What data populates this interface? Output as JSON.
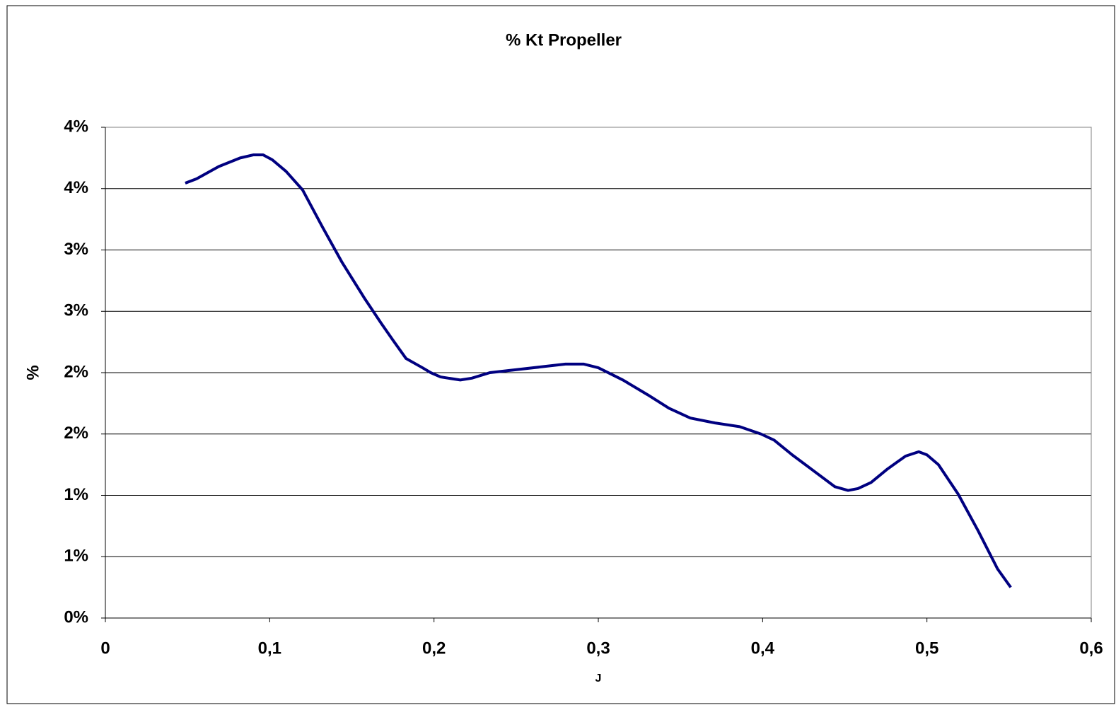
{
  "chart_data": {
    "type": "line",
    "title": "% Kt Propeller",
    "x_label": "J",
    "y_label": "%",
    "x": [
      0.0486,
      0.0555,
      0.069,
      0.082,
      0.09,
      0.096,
      0.1016,
      0.11,
      0.12,
      0.132,
      0.144,
      0.158,
      0.168,
      0.175,
      0.183,
      0.193,
      0.198,
      0.204,
      0.216,
      0.223,
      0.234,
      0.254,
      0.28,
      0.291,
      0.3,
      0.315,
      0.33,
      0.343,
      0.356,
      0.371,
      0.386,
      0.399,
      0.407,
      0.418,
      0.429,
      0.444,
      0.452,
      0.458,
      0.466,
      0.476,
      0.487,
      0.495,
      0.5,
      0.507,
      0.519,
      0.531,
      0.543,
      0.551
    ],
    "series": [
      {
        "color": "#000080",
        "values": [
          3.545,
          3.58,
          3.68,
          3.75,
          3.775,
          3.775,
          3.735,
          3.64,
          3.49,
          3.19,
          2.9,
          2.6,
          2.4,
          2.265,
          2.115,
          2.04,
          2.0,
          1.965,
          1.94,
          1.955,
          2.0,
          2.03,
          2.07,
          2.07,
          2.04,
          1.94,
          1.82,
          1.71,
          1.63,
          1.59,
          1.56,
          1.5,
          1.45,
          1.33,
          1.22,
          1.07,
          1.04,
          1.055,
          1.105,
          1.215,
          1.32,
          1.355,
          1.33,
          1.25,
          1.01,
          0.715,
          0.4,
          0.25
        ]
      }
    ],
    "xlim": [
      0,
      0.6
    ],
    "xticks": [
      0,
      {
        "value": 0.1,
        "label": "0,1"
      },
      {
        "value": 0.2,
        "label": "0,2"
      },
      {
        "value": 0.3,
        "label": "0,3"
      },
      {
        "value": 0.4,
        "label": "0,4"
      },
      {
        "value": 0.5,
        "label": "0,5"
      },
      {
        "value": 0.6,
        "label": "0,6"
      }
    ],
    "ylim": [
      0,
      4
    ],
    "yticks": [
      {
        "value": 0,
        "label": "0%"
      },
      {
        "value": 0.5,
        "label": "1%"
      },
      {
        "value": 1,
        "label": "1%"
      },
      {
        "value": 1.5,
        "label": "2%"
      },
      {
        "value": 2,
        "label": "2%"
      },
      {
        "value": 2.5,
        "label": "3%"
      },
      {
        "value": 3,
        "label": "3%"
      },
      {
        "value": 3.5,
        "label": "4%"
      },
      {
        "value": 4,
        "label": "4%"
      }
    ],
    "grid": true
  }
}
